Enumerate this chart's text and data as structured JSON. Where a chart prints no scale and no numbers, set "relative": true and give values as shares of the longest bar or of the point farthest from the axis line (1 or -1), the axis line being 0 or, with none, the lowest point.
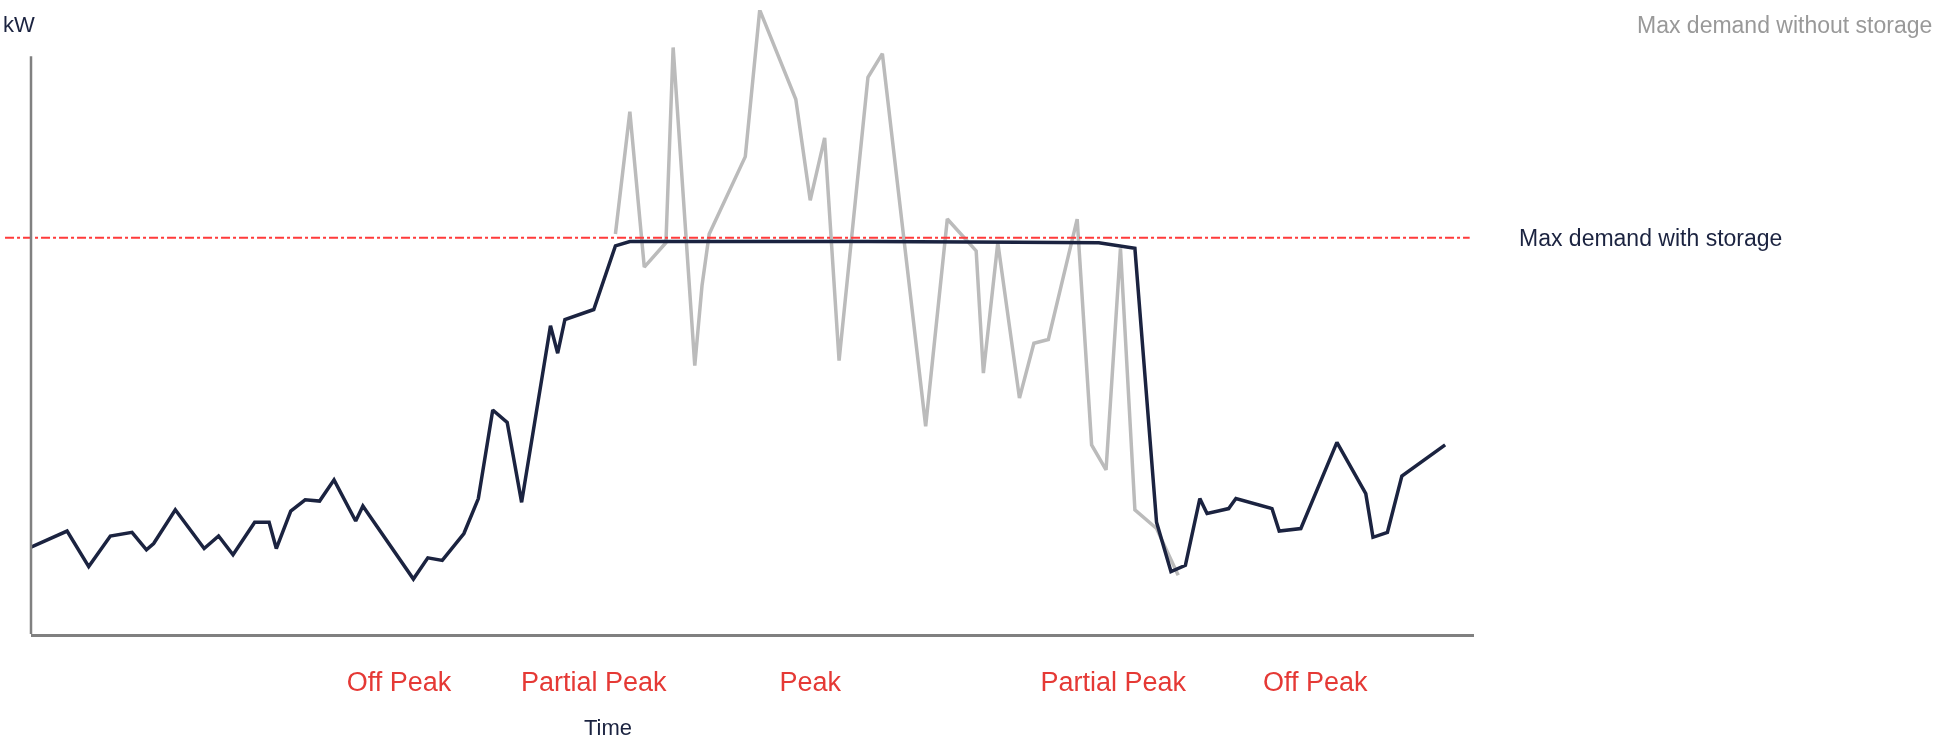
{
  "chart_data": {
    "type": "line",
    "relative": true,
    "xlabel": "Time",
    "ylabel": "kW",
    "tick_labels": "x",
    "grid": false,
    "legend": false,
    "marker": "none",
    "line_style": "solid",
    "categories": [
      null,
      null,
      null,
      null,
      null,
      null,
      null,
      null,
      null,
      null,
      null,
      null,
      null,
      null,
      null,
      null,
      null,
      null,
      null,
      null,
      null,
      null,
      null,
      null,
      null,
      null,
      null,
      null,
      null,
      null,
      null,
      null,
      null,
      null,
      null,
      null,
      null,
      null,
      null,
      null,
      null,
      null,
      null,
      null,
      null,
      null,
      null,
      null,
      null,
      null,
      null,
      "Off Peak",
      null,
      null,
      null,
      null,
      null,
      null,
      null,
      null,
      null,
      null,
      null,
      null,
      null,
      null,
      null,
      null,
      null,
      null,
      null,
      null,
      null,
      null,
      null,
      null,
      null,
      null,
      "Partial Peak",
      null,
      null,
      null,
      null,
      null,
      null,
      null,
      null,
      null,
      null,
      null,
      null,
      null,
      null,
      null,
      null,
      null,
      null,
      null,
      null,
      null,
      null,
      null,
      null,
      null,
      null,
      null,
      null,
      null,
      "Peak",
      null,
      null,
      null,
      null,
      null,
      null,
      null,
      null,
      null,
      null,
      null,
      null,
      null,
      null,
      null,
      null,
      null,
      null,
      null,
      null,
      null,
      null,
      null,
      null,
      null,
      null,
      null,
      null,
      null,
      null,
      null,
      null,
      null,
      null,
      null,
      null,
      null,
      null,
      null,
      null,
      null,
      "Partial Peak",
      null,
      null,
      null,
      null,
      null,
      null,
      null,
      null,
      null,
      null,
      null,
      null,
      null,
      null,
      null,
      null,
      null,
      null,
      null,
      null,
      null,
      null,
      null,
      null,
      null,
      null,
      null,
      "Off Peak",
      null,
      null,
      null,
      null,
      null,
      null,
      null,
      null,
      null,
      null,
      null,
      null,
      null,
      null,
      null,
      null,
      null,
      null,
      null,
      null,
      null,
      null
    ],
    "ref_lines": [
      {
        "axis": "y",
        "value": 0.635,
        "color": "#ff3b3b",
        "line_style": "dashed"
      }
    ],
    "series": [
      {
        "name": "Max demand without storage",
        "color": "#bbbbbb",
        "values": [
          null,
          null,
          null,
          null,
          null,
          null,
          null,
          null,
          null,
          null,
          null,
          null,
          null,
          null,
          null,
          null,
          null,
          null,
          null,
          null,
          null,
          null,
          null,
          null,
          null,
          null,
          null,
          null,
          null,
          null,
          null,
          null,
          null,
          null,
          null,
          null,
          null,
          null,
          null,
          null,
          null,
          null,
          null,
          null,
          null,
          null,
          null,
          null,
          null,
          null,
          null,
          null,
          null,
          null,
          null,
          null,
          null,
          null,
          null,
          null,
          null,
          null,
          null,
          null,
          null,
          null,
          null,
          null,
          null,
          null,
          null,
          null,
          null,
          null,
          null,
          null,
          null,
          null,
          null,
          null,
          null,
          0.641,
          null,
          0.837,
          null,
          0.588,
          null,
          null,
          0.627,
          0.94,
          null,
          null,
          0.43,
          0.558,
          0.641,
          null,
          null,
          null,
          null,
          0.765,
          null,
          1,
          null,
          null,
          null,
          null,
          0.857,
          null,
          0.695,
          null,
          0.795,
          null,
          0.438,
          null,
          null,
          null,
          0.892,
          null,
          0.93,
          null,
          null,
          null,
          null,
          null,
          0.333,
          null,
          null,
          0.665,
          null,
          null,
          null,
          0.614,
          0.418,
          null,
          0.627,
          null,
          null,
          0.378,
          null,
          0.466,
          null,
          0.472,
          null,
          null,
          null,
          0.665,
          null,
          0.303,
          null,
          0.263,
          null,
          0.618,
          null,
          0.199,
          null,
          null,
          0.169,
          null,
          null,
          0.094,
          null,
          null,
          null,
          null,
          null,
          null,
          null,
          null,
          null,
          null,
          null,
          null,
          null,
          null,
          null,
          null,
          null,
          null,
          null,
          null,
          null,
          null,
          null,
          null,
          null,
          null,
          null,
          null,
          null,
          null,
          null,
          null,
          null,
          null,
          null,
          null,
          null,
          null,
          null,
          null,
          null
        ]
      },
      {
        "name": "Max demand with storage",
        "color": "#1b2340",
        "values": [
          0.139,
          null,
          null,
          null,
          null,
          0.165,
          null,
          null,
          0.108,
          null,
          null,
          0.157,
          null,
          null,
          0.163,
          null,
          0.135,
          0.145,
          null,
          null,
          0.199,
          null,
          null,
          null,
          0.137,
          null,
          0.157,
          null,
          0.127,
          null,
          null,
          0.179,
          null,
          0.179,
          0.137,
          null,
          0.197,
          null,
          0.215,
          null,
          0.213,
          null,
          0.247,
          null,
          null,
          0.181,
          0.205,
          null,
          null,
          null,
          null,
          null,
          null,
          0.088,
          null,
          0.122,
          null,
          0.118,
          null,
          null,
          0.161,
          null,
          0.217,
          null,
          0.359,
          null,
          0.339,
          null,
          0.211,
          null,
          null,
          null,
          0.494,
          0.45,
          0.504,
          null,
          null,
          null,
          0.52,
          null,
          null,
          0.622,
          null,
          0.629,
          null,
          null,
          null,
          null,
          null,
          null,
          null,
          null,
          null,
          null,
          null,
          null,
          null,
          null,
          null,
          null,
          null,
          null,
          null,
          null,
          null,
          null,
          null,
          null,
          null,
          null,
          null,
          null,
          null,
          null,
          null,
          null,
          0.629,
          null,
          null,
          null,
          null,
          null,
          null,
          null,
          null,
          null,
          null,
          null,
          null,
          null,
          null,
          null,
          null,
          null,
          null,
          null,
          null,
          null,
          null,
          null,
          null,
          null,
          null,
          null,
          null,
          null,
          null,
          null,
          0.627,
          null,
          null,
          null,
          null,
          0.618,
          null,
          null,
          0.179,
          null,
          0.1,
          null,
          0.11,
          null,
          0.217,
          0.193,
          null,
          null,
          0.201,
          0.217,
          null,
          null,
          null,
          null,
          0.201,
          0.165,
          null,
          null,
          0.169,
          null,
          null,
          null,
          null,
          0.307,
          null,
          null,
          null,
          0.225,
          0.155,
          null,
          0.163,
          null,
          0.253,
          null,
          null,
          null,
          null,
          null,
          0.303,
          null,
          null,
          null,
          null
        ]
      }
    ]
  }
}
